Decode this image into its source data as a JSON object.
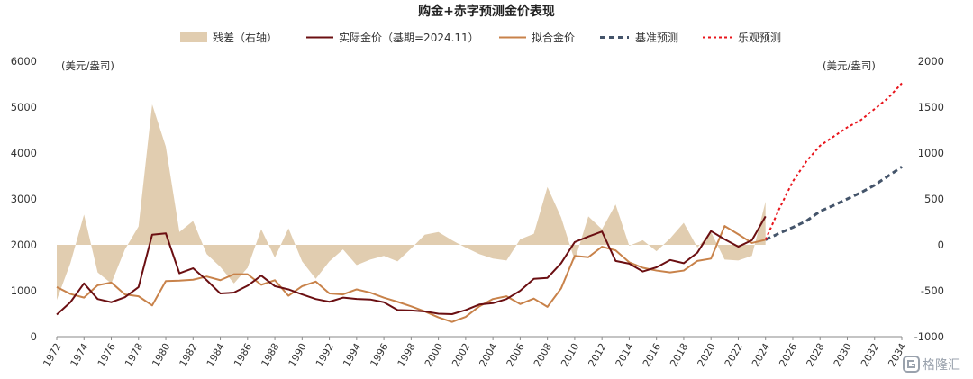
{
  "chart_data": {
    "type": "line",
    "title": "购金+赤字预测金价表现",
    "left_axis": {
      "unit": "(美元/盎司)",
      "ticks": [
        "6000",
        "5000",
        "4000",
        "3000",
        "2000",
        "1000",
        "0"
      ],
      "ylim": [
        0,
        6000
      ]
    },
    "right_axis": {
      "unit": "(美元/盎司)",
      "ticks": [
        "2000",
        "1500",
        "1000",
        "500",
        "0",
        "-500",
        "-1000"
      ],
      "ylim": [
        -1000,
        2000
      ]
    },
    "x_ticks": [
      "1972",
      "1974",
      "1976",
      "1978",
      "1980",
      "1982",
      "1984",
      "1986",
      "1988",
      "1990",
      "1992",
      "1994",
      "1996",
      "1998",
      "2000",
      "2002",
      "2004",
      "2006",
      "2008",
      "2010",
      "2012",
      "2014",
      "2016",
      "2018",
      "2020",
      "2022",
      "2024",
      "2026",
      "2028",
      "2030",
      "2032",
      "2034"
    ],
    "xlim": [
      1972,
      2034
    ],
    "colors": {
      "residual": "#e1cdb0",
      "actual": "#6b0f12",
      "fitted": "#c8824a",
      "baseline": "#44546a",
      "optimistic": "#e8141b"
    },
    "legend": [
      {
        "key": "residual",
        "label": "残差（右轴）"
      },
      {
        "key": "actual",
        "label": "实际金价（基期=2024.11）"
      },
      {
        "key": "fitted",
        "label": "拟合金价"
      },
      {
        "key": "baseline",
        "label": "基准预测"
      },
      {
        "key": "optimistic",
        "label": "乐观预测"
      }
    ],
    "series": [
      {
        "name": "实际金价（基期=2024.11）",
        "axis": "left",
        "x": [
          1972,
          1973,
          1974,
          1975,
          1976,
          1977,
          1978,
          1979,
          1980,
          1981,
          1982,
          1983,
          1984,
          1985,
          1986,
          1987,
          1988,
          1989,
          1990,
          1991,
          1992,
          1993,
          1994,
          1995,
          1996,
          1997,
          1998,
          1999,
          2000,
          2001,
          2002,
          2003,
          2004,
          2005,
          2006,
          2007,
          2008,
          2009,
          2010,
          2011,
          2012,
          2013,
          2014,
          2015,
          2016,
          2017,
          2018,
          2019,
          2020,
          2021,
          2022,
          2023,
          2024
        ],
        "y": [
          480,
          750,
          1160,
          820,
          750,
          860,
          1080,
          2220,
          2250,
          1380,
          1490,
          1230,
          940,
          960,
          1110,
          1330,
          1100,
          1030,
          920,
          820,
          760,
          850,
          820,
          810,
          750,
          580,
          570,
          550,
          500,
          490,
          580,
          700,
          730,
          820,
          1000,
          1260,
          1280,
          1600,
          2060,
          2180,
          2290,
          1650,
          1590,
          1420,
          1510,
          1670,
          1600,
          1830,
          2300,
          2120,
          1960,
          2100,
          2620
        ]
      },
      {
        "name": "拟合金价",
        "axis": "left",
        "x": [
          1972,
          1973,
          1974,
          1975,
          1976,
          1977,
          1978,
          1979,
          1980,
          1981,
          1982,
          1983,
          1984,
          1985,
          1986,
          1987,
          1988,
          1989,
          1990,
          1991,
          1992,
          1993,
          1994,
          1995,
          1996,
          1997,
          1998,
          1999,
          2000,
          2001,
          2002,
          2003,
          2004,
          2005,
          2006,
          2007,
          2008,
          2009,
          2010,
          2011,
          2012,
          2013,
          2014,
          2015,
          2016,
          2017,
          2018,
          2019,
          2020,
          2021,
          2022,
          2023,
          2024
        ],
        "y": [
          1080,
          930,
          850,
          1120,
          1180,
          920,
          880,
          680,
          1210,
          1220,
          1240,
          1310,
          1230,
          1360,
          1360,
          1130,
          1230,
          890,
          1100,
          1200,
          940,
          920,
          1030,
          960,
          850,
          760,
          660,
          550,
          420,
          320,
          430,
          660,
          820,
          880,
          710,
          830,
          650,
          1050,
          1760,
          1730,
          1960,
          1880,
          1620,
          1500,
          1440,
          1400,
          1440,
          1650,
          1700,
          2410,
          2230,
          2040,
          2110
        ]
      },
      {
        "name": "残差（右轴）",
        "axis": "right",
        "x": [
          1972,
          1973,
          1974,
          1975,
          1976,
          1977,
          1978,
          1979,
          1980,
          1981,
          1982,
          1983,
          1984,
          1985,
          1986,
          1987,
          1988,
          1989,
          1990,
          1991,
          1992,
          1993,
          1994,
          1995,
          1996,
          1997,
          1998,
          1999,
          2000,
          2001,
          2002,
          2003,
          2004,
          2005,
          2006,
          2007,
          2008,
          2009,
          2010,
          2011,
          2012,
          2013,
          2014,
          2015,
          2016,
          2017,
          2018,
          2019,
          2020,
          2021,
          2022,
          2023,
          2024
        ],
        "y": [
          -600,
          -200,
          330,
          -300,
          -420,
          -50,
          200,
          1530,
          1070,
          140,
          260,
          -100,
          -240,
          -420,
          -250,
          170,
          -140,
          180,
          -180,
          -370,
          -180,
          -50,
          -220,
          -160,
          -120,
          -180,
          -40,
          110,
          140,
          50,
          -30,
          -100,
          -150,
          -170,
          60,
          120,
          630,
          300,
          -170,
          310,
          170,
          440,
          -10,
          50,
          -70,
          70,
          240,
          -30,
          140,
          -160,
          -170,
          -120,
          470
        ]
      },
      {
        "name": "基准预测",
        "axis": "left",
        "dashed": true,
        "x": [
          2024,
          2025,
          2026,
          2027,
          2028,
          2029,
          2030,
          2031,
          2032,
          2033,
          2034
        ],
        "y": [
          2110,
          2250,
          2380,
          2520,
          2730,
          2860,
          3000,
          3140,
          3300,
          3500,
          3700
        ]
      },
      {
        "name": "乐观预测",
        "axis": "left",
        "dashed": true,
        "x": [
          2024,
          2025,
          2026,
          2027,
          2028,
          2029,
          2030,
          2031,
          2032,
          2033,
          2034
        ],
        "y": [
          2110,
          2780,
          3380,
          3820,
          4160,
          4360,
          4560,
          4720,
          4960,
          5200,
          5520
        ]
      }
    ]
  },
  "watermark": {
    "text": "格隆汇",
    "icon": "glh-logo-icon"
  }
}
